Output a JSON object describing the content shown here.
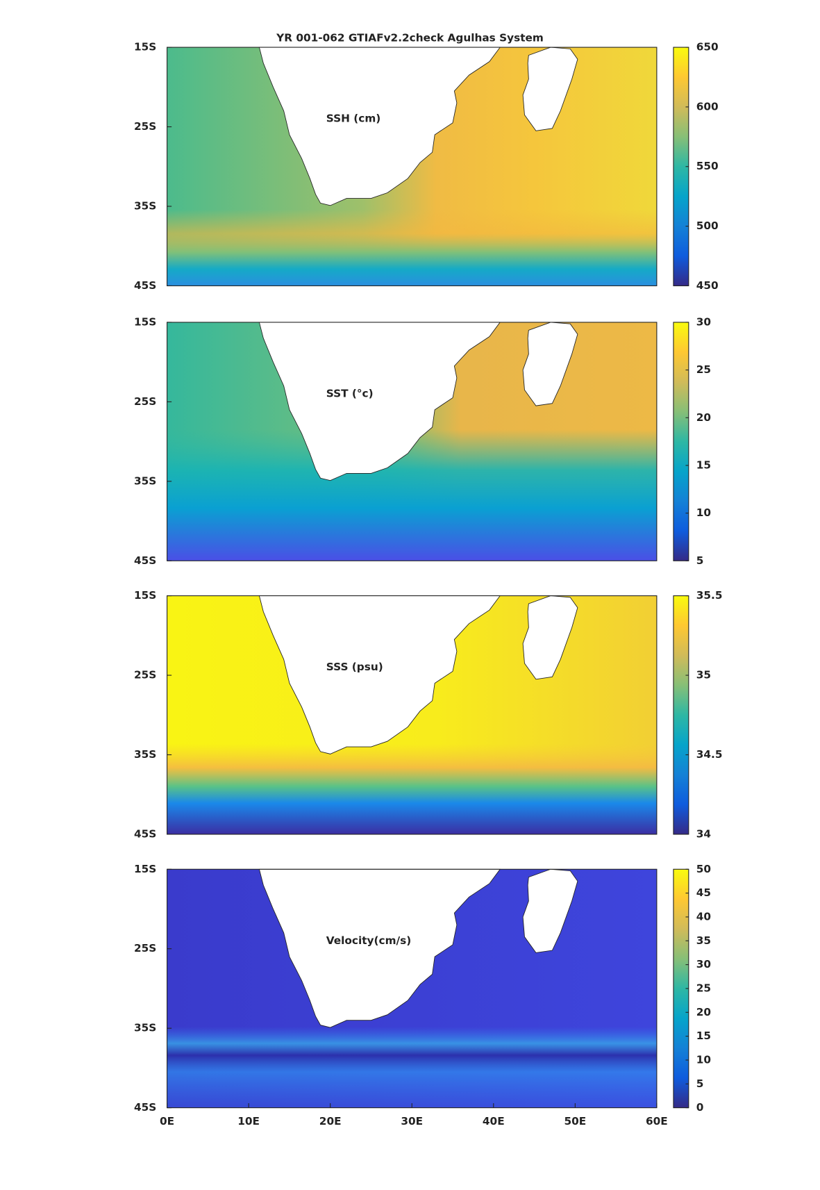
{
  "chart_data": [
    {
      "type": "map",
      "title": "YR 001-062 GTIAFv2.2check Agulhas System",
      "annotation": "SSH (cm)",
      "xlim": [
        0,
        60
      ],
      "ylim": [
        -45,
        -15
      ],
      "yticks": [
        {
          "value": -15,
          "label": "15S"
        },
        {
          "value": -25,
          "label": "25S"
        },
        {
          "value": -35,
          "label": "35S"
        },
        {
          "value": -45,
          "label": "45S"
        }
      ],
      "clim": [
        450,
        650
      ],
      "cticks": [
        450,
        500,
        550,
        600,
        650
      ]
    },
    {
      "type": "map",
      "annotation": "SST (°c)",
      "xlim": [
        0,
        60
      ],
      "ylim": [
        -45,
        -15
      ],
      "yticks": [
        {
          "value": -15,
          "label": "15S"
        },
        {
          "value": -25,
          "label": "25S"
        },
        {
          "value": -35,
          "label": "35S"
        },
        {
          "value": -45,
          "label": "45S"
        }
      ],
      "clim": [
        5,
        30
      ],
      "cticks": [
        5,
        10,
        15,
        20,
        25,
        30
      ]
    },
    {
      "type": "map",
      "annotation": "SSS (psu)",
      "xlim": [
        0,
        60
      ],
      "ylim": [
        -45,
        -15
      ],
      "yticks": [
        {
          "value": -15,
          "label": "15S"
        },
        {
          "value": -25,
          "label": "25S"
        },
        {
          "value": -35,
          "label": "35S"
        },
        {
          "value": -45,
          "label": "45S"
        }
      ],
      "clim": [
        34,
        35.5
      ],
      "cticks": [
        34,
        34.5,
        35,
        35.5
      ]
    },
    {
      "type": "map",
      "annotation": "Velocity(cm/s)",
      "xlim": [
        0,
        60
      ],
      "ylim": [
        -45,
        -15
      ],
      "yticks": [
        {
          "value": -15,
          "label": "15S"
        },
        {
          "value": -25,
          "label": "25S"
        },
        {
          "value": -35,
          "label": "35S"
        },
        {
          "value": -45,
          "label": "45S"
        }
      ],
      "xticks": [
        {
          "value": 0,
          "label": "0E"
        },
        {
          "value": 10,
          "label": "10E"
        },
        {
          "value": 20,
          "label": "20E"
        },
        {
          "value": 30,
          "label": "30E"
        },
        {
          "value": 40,
          "label": "40E"
        },
        {
          "value": 50,
          "label": "50E"
        },
        {
          "value": 60,
          "label": "60E"
        }
      ],
      "clim": [
        0,
        50
      ],
      "cticks": [
        0,
        5,
        10,
        15,
        20,
        25,
        30,
        35,
        40,
        45,
        50
      ]
    }
  ]
}
